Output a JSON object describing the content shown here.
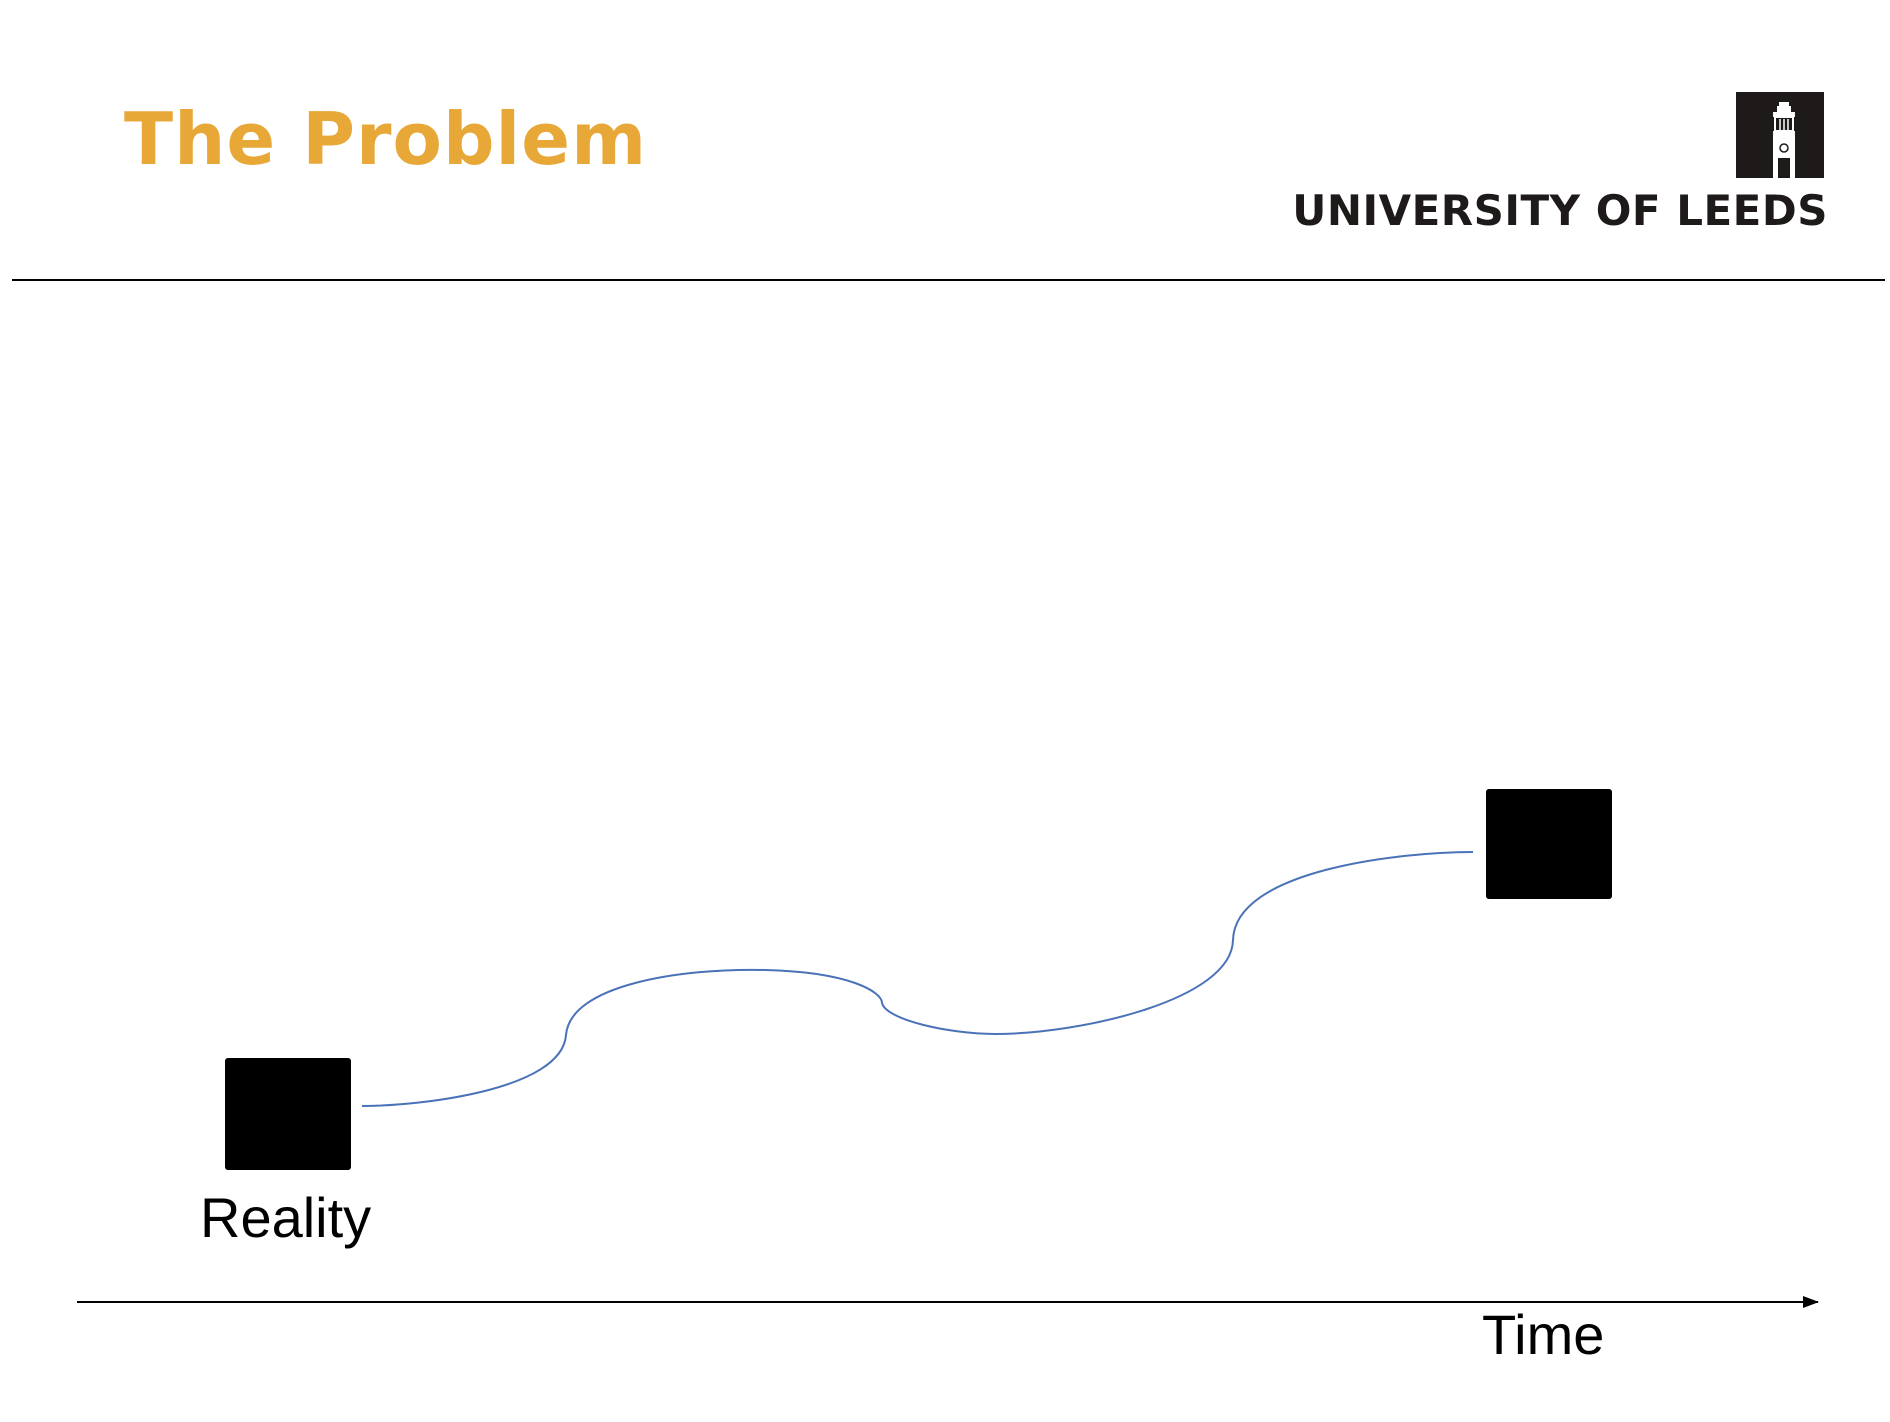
{
  "slide": {
    "title": "The Problem"
  },
  "logo": {
    "text": "UNIVERSITY OF LEEDS",
    "icon": "clock-tower-icon",
    "color": "#1e1a1a"
  },
  "diagram": {
    "start_label": "Reality",
    "axis_label": "Time",
    "nodes": [
      {
        "id": "start",
        "shape": "black-square"
      },
      {
        "id": "end",
        "shape": "black-square"
      }
    ],
    "path_color": "#4a72b8",
    "title_color": "#e8a838"
  }
}
